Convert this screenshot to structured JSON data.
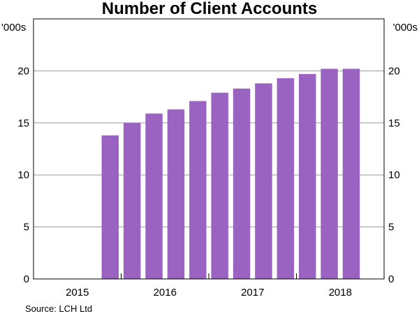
{
  "chart_data": {
    "type": "bar",
    "title": "Number of Client Accounts",
    "unit_left": "'000s",
    "unit_right": "'000s",
    "ylim": [
      0,
      25
    ],
    "y_ticks": [
      0,
      5,
      10,
      15,
      20
    ],
    "grid": true,
    "x_range": [
      2014.5,
      2018.5
    ],
    "x_ticks": [
      2015,
      2016,
      2017,
      2018
    ],
    "x_tick_labels": [
      "2015",
      "2016",
      "2017",
      "2018"
    ],
    "bar_color": "#9a63c1",
    "series": [
      {
        "categories": [
          "2015 Q2",
          "2015 Q3",
          "2015 Q4",
          "2016 Q1",
          "2016 Q2",
          "2016 Q3",
          "2016 Q4",
          "2017 Q1",
          "2017 Q2",
          "2017 Q3",
          "2017 Q4",
          "2018 Q1"
        ],
        "x": [
          2015.375,
          2015.625,
          2015.875,
          2016.125,
          2016.375,
          2016.625,
          2016.875,
          2017.125,
          2017.375,
          2017.625,
          2017.875,
          2018.125
        ],
        "values": [
          13.8,
          15.0,
          15.9,
          16.3,
          17.1,
          17.9,
          18.3,
          18.8,
          19.3,
          19.7,
          20.2,
          20.2
        ]
      }
    ],
    "source": "Source:   LCH Ltd"
  }
}
